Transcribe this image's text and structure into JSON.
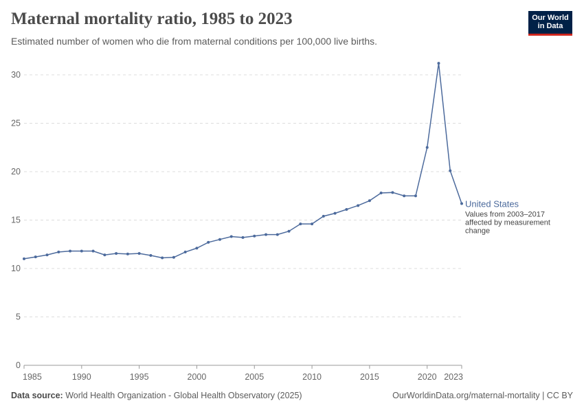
{
  "header": {
    "title": "Maternal mortality ratio, 1985 to 2023",
    "subtitle": "Estimated number of women who die from maternal conditions per 100,000 live births.",
    "logo_text": "Our World in Data"
  },
  "footer": {
    "source_label": "Data source:",
    "source": "World Health Organization - Global Health Observatory (2025)",
    "link": "OurWorldinData.org/maternal-mortality | CC BY"
  },
  "chart_data": {
    "type": "line",
    "title": "Maternal mortality ratio, 1985 to 2023",
    "subtitle": "Estimated number of women who die from maternal conditions per 100,000 live births.",
    "xlim": [
      1985,
      2023
    ],
    "ylim": [
      0,
      30
    ],
    "x_ticks": [
      "1985",
      "1990",
      "1995",
      "2000",
      "2005",
      "2010",
      "2015",
      "2020",
      "2023"
    ],
    "y_ticks": [
      "0",
      "5",
      "10",
      "15",
      "20",
      "25",
      "30"
    ],
    "grid": "horizontal dashed",
    "color": "#4c6a9c",
    "series": [
      {
        "name": "United States",
        "note": "Values from 2003–2017 affected by measurement change",
        "x": [
          1985,
          1986,
          1987,
          1988,
          1989,
          1990,
          1991,
          1992,
          1993,
          1994,
          1995,
          1996,
          1997,
          1998,
          1999,
          2000,
          2001,
          2002,
          2003,
          2004,
          2005,
          2006,
          2007,
          2008,
          2009,
          2010,
          2011,
          2012,
          2013,
          2014,
          2015,
          2016,
          2017,
          2018,
          2019,
          2020,
          2021,
          2022,
          2023
        ],
        "y": [
          11.0,
          11.2,
          11.4,
          11.7,
          11.8,
          11.8,
          11.8,
          11.4,
          11.55,
          11.5,
          11.55,
          11.35,
          11.1,
          11.15,
          11.7,
          12.1,
          12.7,
          13.0,
          13.3,
          13.2,
          13.35,
          13.5,
          13.5,
          13.85,
          14.6,
          14.6,
          15.4,
          15.7,
          16.1,
          16.5,
          17.0,
          17.8,
          17.85,
          17.5,
          17.5,
          22.5,
          31.2,
          20.1,
          16.7
        ]
      }
    ]
  }
}
